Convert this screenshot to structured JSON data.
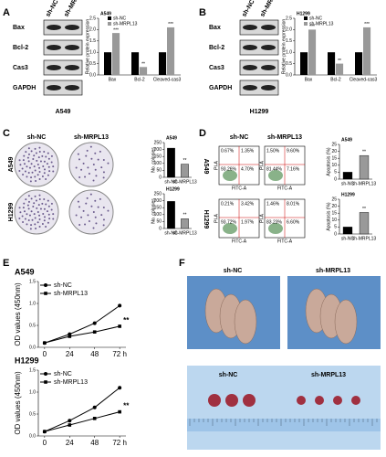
{
  "figure": {
    "A": {
      "letter": "A",
      "lanes": [
        "sh-NC",
        "sh-MRPL13"
      ],
      "rows": [
        "Bax",
        "Bcl-2",
        "Cas3",
        "GAPDH"
      ],
      "cell": "A549"
    },
    "B": {
      "letter": "B",
      "lanes": [
        "sh-NC",
        "sh-MRPL13"
      ],
      "rows": [
        "Bax",
        "Bcl-2",
        "Cas3",
        "GAPDH"
      ],
      "cell": "H1299"
    },
    "C": {
      "letter": "C",
      "columns": [
        "sh-NC",
        "sh-MRPL13"
      ],
      "rows": [
        "A549",
        "H1299"
      ]
    },
    "D": {
      "letter": "D",
      "columns": [
        "sh-NC",
        "sh-MRPL13"
      ],
      "rows": [
        "A549",
        "H1299"
      ],
      "axis_x": "FITC-A",
      "axis_y": "PI-A",
      "quadrants": [
        [
          [
            "0.67%",
            "1.35%",
            "93.26%",
            "4.70%"
          ],
          [
            "1.50%",
            "9.60%",
            "81.44%",
            "7.16%"
          ]
        ],
        [
          [
            "0.21%",
            "3.42%",
            "93.72%",
            "1.97%"
          ],
          [
            "1.46%",
            "8.01%",
            "83.23%",
            "6.60%"
          ]
        ]
      ]
    },
    "E": {
      "letter": "E"
    },
    "F": {
      "letter": "F",
      "top": [
        "sh-NC",
        "sh-MRPL13"
      ],
      "bottom": [
        "sh-NC",
        "sh-MRPL13"
      ]
    }
  },
  "chart_data": [
    {
      "type": "bar",
      "title": "A549",
      "y_label": "Relative protein expression",
      "categories": [
        "Bax",
        "Bcl-2",
        "Cleaved-cas3"
      ],
      "series": [
        {
          "name": "sh-NC",
          "color": "#000000",
          "values": [
            1,
            1,
            1
          ]
        },
        {
          "name": "sh-MRPL13",
          "color": "#999999",
          "values": [
            1.85,
            0.35,
            2.1
          ]
        }
      ],
      "annotations": [
        "***",
        "**",
        "***"
      ],
      "ylim": [
        0,
        2.5
      ],
      "yticks": [
        {
          "value": 0,
          "label": "0.0"
        },
        {
          "value": 0.5,
          "label": "0.5"
        },
        {
          "value": 1,
          "label": "1.0"
        },
        {
          "value": 1.5,
          "label": "1.5"
        },
        {
          "value": 2,
          "label": "2.0"
        },
        {
          "value": 2.5,
          "label": "2.5"
        }
      ]
    },
    {
      "type": "bar",
      "title": "H1299",
      "y_label": "Relative protein expression",
      "categories": [
        "Bax",
        "Bcl-2",
        "Cleaved-cas3"
      ],
      "series": [
        {
          "name": "sh-NC",
          "color": "#000000",
          "values": [
            1,
            1,
            1
          ]
        },
        {
          "name": "sh-MRPL13",
          "color": "#999999",
          "values": [
            2.0,
            0.5,
            2.1
          ]
        }
      ],
      "annotations": [
        "***",
        "**",
        "***"
      ],
      "ylim": [
        0,
        2.5
      ],
      "yticks": [
        {
          "value": 0,
          "label": "0.0"
        },
        {
          "value": 0.5,
          "label": "0.5"
        },
        {
          "value": 1,
          "label": "1.0"
        },
        {
          "value": 1.5,
          "label": "1.5"
        },
        {
          "value": 2,
          "label": "2.0"
        },
        {
          "value": 2.5,
          "label": "2.5"
        }
      ]
    },
    {
      "type": "bar",
      "title": "A549",
      "y_label": "No. colonies",
      "categories": [
        "sh-NC",
        "sh-MRPL13"
      ],
      "values": [
        210,
        95
      ],
      "colors": [
        "#000000",
        "#999999"
      ],
      "annotations": [
        "**"
      ],
      "ylim": [
        0,
        250
      ],
      "yticks": [
        0,
        50,
        100,
        150,
        200,
        250
      ]
    },
    {
      "type": "bar",
      "title": "H1299",
      "y_label": "No. colonies",
      "categories": [
        "sh-NC",
        "sh-MRPL13"
      ],
      "values": [
        195,
        70
      ],
      "colors": [
        "#000000",
        "#999999"
      ],
      "annotations": [
        "**"
      ],
      "ylim": [
        0,
        250
      ],
      "yticks": [
        0,
        50,
        100,
        150,
        200,
        250
      ]
    },
    {
      "type": "bar",
      "title": "A549",
      "y_label": "Apoptosis (%)",
      "categories": [
        "sh-NC",
        "sh-MRPL13"
      ],
      "values": [
        5,
        17
      ],
      "colors": [
        "#000000",
        "#999999"
      ],
      "annotations": [
        "**"
      ],
      "ylim": [
        0,
        25
      ],
      "yticks": [
        0,
        5,
        10,
        15,
        20,
        25
      ]
    },
    {
      "type": "bar",
      "title": "H1299",
      "y_label": "Apoptosis (%)",
      "categories": [
        "sh-NC",
        "sh-MRPL13"
      ],
      "values": [
        5,
        15.5
      ],
      "colors": [
        "#000000",
        "#999999"
      ],
      "annotations": [
        "**"
      ],
      "ylim": [
        0,
        25
      ],
      "yticks": [
        0,
        5,
        10,
        15,
        20,
        25
      ]
    },
    {
      "type": "line",
      "title": "A549",
      "y_label": "OD values (450nm)",
      "x": [
        0,
        24,
        48,
        72
      ],
      "series": [
        {
          "name": "sh-NC",
          "color": "#000000",
          "values": [
            0.1,
            0.3,
            0.55,
            0.95
          ]
        },
        {
          "name": "sh-MRPL13",
          "color": "#000000",
          "values": [
            0.1,
            0.25,
            0.35,
            0.48
          ]
        }
      ],
      "annotations": [
        "**"
      ],
      "xlim": [
        -6,
        78
      ],
      "xticks": [
        0,
        24,
        48,
        {
          "value": 72,
          "label": "72 h"
        }
      ],
      "ylim": [
        0,
        1.5
      ],
      "yticks": [
        {
          "value": 0,
          "label": "0.0"
        },
        {
          "value": 0.5,
          "label": "0.5"
        },
        {
          "value": 1,
          "label": "1.0"
        },
        {
          "value": 1.5,
          "label": "1.5"
        }
      ]
    },
    {
      "type": "line",
      "title": "H1299",
      "y_label": "OD values (450nm)",
      "x": [
        0,
        24,
        48,
        72
      ],
      "series": [
        {
          "name": "sh-NC",
          "color": "#000000",
          "values": [
            0.1,
            0.35,
            0.65,
            1.1
          ]
        },
        {
          "name": "sh-MRPL13",
          "color": "#000000",
          "values": [
            0.1,
            0.25,
            0.4,
            0.55
          ]
        }
      ],
      "annotations": [
        "**"
      ],
      "xlim": [
        -6,
        78
      ],
      "xticks": [
        0,
        24,
        48,
        {
          "value": 72,
          "label": "72 h"
        }
      ],
      "ylim": [
        0,
        1.5
      ],
      "yticks": [
        {
          "value": 0,
          "label": "0.0"
        },
        {
          "value": 0.5,
          "label": "0.5"
        },
        {
          "value": 1,
          "label": "1.0"
        },
        {
          "value": 1.5,
          "label": "1.5"
        }
      ]
    }
  ]
}
